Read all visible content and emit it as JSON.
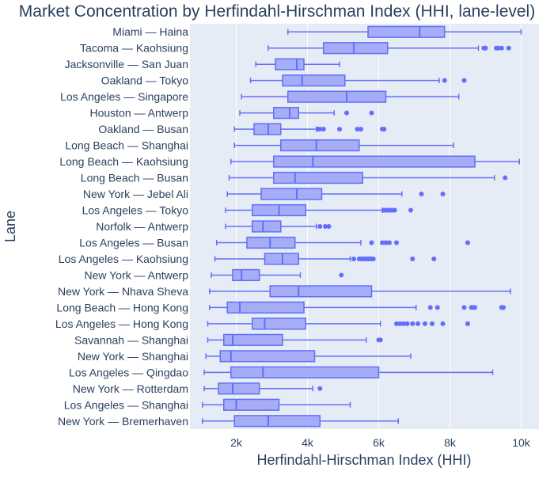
{
  "chart_data": {
    "type": "box",
    "orientation": "horizontal",
    "title": "Market Concentration by Herfindahl-Hirschman Index (HHI, lane-level)",
    "xlabel": "Herfindahl-Hirschman Index (HHI)",
    "ylabel": "Lane",
    "xlim": [
      700,
      10500
    ],
    "xticks": [
      2000,
      4000,
      6000,
      8000,
      10000
    ],
    "xtick_labels": [
      "2k",
      "4k",
      "6k",
      "8k",
      "10k"
    ],
    "grid": true,
    "legend": "none",
    "colors": {
      "box_fill": "#a5adf7",
      "box_line": "#636efa",
      "plot_bg": "#e5ecf6",
      "grid": "#ffffff",
      "text": "#2a3f5f"
    },
    "lanes": [
      {
        "name": "Miami — Haina",
        "whisker_low": 3450,
        "q1": 5700,
        "median": 7150,
        "q3": 7850,
        "whisker_high": 10000,
        "outliers": []
      },
      {
        "name": "Tacoma — Kaohsiung",
        "whisker_low": 2900,
        "q1": 4450,
        "median": 5300,
        "q3": 6250,
        "whisker_high": 8800,
        "outliers": [
          8950,
          9000,
          9300,
          9350,
          9450,
          9650
        ]
      },
      {
        "name": "Jacksonville — San Juan",
        "whisker_low": 2550,
        "q1": 3100,
        "median": 3700,
        "q3": 3900,
        "whisker_high": 4900,
        "outliers": []
      },
      {
        "name": "Oakland — Tokyo",
        "whisker_low": 2400,
        "q1": 3300,
        "median": 3850,
        "q3": 5050,
        "whisker_high": 7700,
        "outliers": [
          7850,
          8400
        ]
      },
      {
        "name": "Los Angeles — Singapore",
        "whisker_low": 2150,
        "q1": 3450,
        "median": 5100,
        "q3": 6200,
        "whisker_high": 8250,
        "outliers": []
      },
      {
        "name": "Houston — Antwerp",
        "whisker_low": 2100,
        "q1": 3050,
        "median": 3500,
        "q3": 3750,
        "whisker_high": 4750,
        "outliers": [
          5100,
          5800
        ]
      },
      {
        "name": "Oakland — Busan",
        "whisker_low": 1950,
        "q1": 2500,
        "median": 2900,
        "q3": 3250,
        "whisker_high": 4250,
        "outliers": [
          4300,
          4350,
          4450,
          4900,
          5400,
          5500,
          6100,
          6150
        ]
      },
      {
        "name": "Long Beach — Shanghai",
        "whisker_low": 1950,
        "q1": 3250,
        "median": 4250,
        "q3": 5450,
        "whisker_high": 8100,
        "outliers": []
      },
      {
        "name": "Long Beach — Kaohsiung",
        "whisker_low": 1850,
        "q1": 3050,
        "median": 4150,
        "q3": 8700,
        "whisker_high": 9950,
        "outliers": []
      },
      {
        "name": "Long Beach — Busan",
        "whisker_low": 1800,
        "q1": 3050,
        "median": 3650,
        "q3": 5550,
        "whisker_high": 9250,
        "outliers": [
          9550
        ]
      },
      {
        "name": "New York — Jebel Ali",
        "whisker_low": 1750,
        "q1": 2700,
        "median": 3700,
        "q3": 4400,
        "whisker_high": 6650,
        "outliers": [
          7200,
          7800
        ]
      },
      {
        "name": "Los Angeles — Tokyo",
        "whisker_low": 1700,
        "q1": 2450,
        "median": 3200,
        "q3": 3950,
        "whisker_high": 6100,
        "outliers": [
          6150,
          6200,
          6250,
          6300,
          6350,
          6400,
          6450,
          6900
        ]
      },
      {
        "name": "Norfolk — Antwerp",
        "whisker_low": 1700,
        "q1": 2450,
        "median": 2750,
        "q3": 3250,
        "whisker_high": 4250,
        "outliers": [
          4350,
          4500,
          4600
        ]
      },
      {
        "name": "Los Angeles — Busan",
        "whisker_low": 1450,
        "q1": 2300,
        "median": 2950,
        "q3": 3650,
        "whisker_high": 5500,
        "outliers": [
          5800,
          6100,
          6200,
          6300,
          6500,
          8500
        ]
      },
      {
        "name": "Los Angeles — Kaohsiung",
        "whisker_low": 1400,
        "q1": 2800,
        "median": 3300,
        "q3": 3750,
        "whisker_high": 5200,
        "outliers": [
          5300,
          5450,
          5500,
          5550,
          5600,
          5650,
          5700,
          5750,
          5800,
          5850,
          6950,
          7550
        ]
      },
      {
        "name": "New York — Antwerp",
        "whisker_low": 1300,
        "q1": 1900,
        "median": 2150,
        "q3": 2650,
        "whisker_high": 3800,
        "outliers": [
          4950
        ]
      },
      {
        "name": "New York — Nhava Sheva",
        "whisker_low": 1250,
        "q1": 2950,
        "median": 3750,
        "q3": 5800,
        "whisker_high": 9700,
        "outliers": []
      },
      {
        "name": "Long Beach — Hong Kong",
        "whisker_low": 1250,
        "q1": 1750,
        "median": 2100,
        "q3": 3900,
        "whisker_high": 7050,
        "outliers": [
          7450,
          7650,
          8400,
          8600,
          8650,
          8700,
          9450,
          9500
        ]
      },
      {
        "name": "Los Angeles — Hong Kong",
        "whisker_low": 1200,
        "q1": 2450,
        "median": 2800,
        "q3": 3950,
        "whisker_high": 6050,
        "outliers": [
          6500,
          6600,
          6700,
          6800,
          6950,
          7100,
          7300,
          7500,
          7800,
          8500
        ]
      },
      {
        "name": "Savannah — Shanghai",
        "whisker_low": 1200,
        "q1": 1650,
        "median": 1900,
        "q3": 3300,
        "whisker_high": 5650,
        "outliers": [
          6000,
          6050
        ]
      },
      {
        "name": "New York — Shanghai",
        "whisker_low": 1150,
        "q1": 1550,
        "median": 1850,
        "q3": 4200,
        "whisker_high": 6900,
        "outliers": []
      },
      {
        "name": "Los Angeles — Qingdao",
        "whisker_low": 1100,
        "q1": 1850,
        "median": 2750,
        "q3": 6000,
        "whisker_high": 9200,
        "outliers": []
      },
      {
        "name": "New York — Rotterdam",
        "whisker_low": 1100,
        "q1": 1500,
        "median": 1900,
        "q3": 2650,
        "whisker_high": 4150,
        "outliers": [
          4350
        ]
      },
      {
        "name": "Los Angeles — Shanghai",
        "whisker_low": 1050,
        "q1": 1650,
        "median": 2000,
        "q3": 3200,
        "whisker_high": 5200,
        "outliers": []
      },
      {
        "name": "New York — Bremerhaven",
        "whisker_low": 1050,
        "q1": 1950,
        "median": 2900,
        "q3": 4350,
        "whisker_high": 6550,
        "outliers": []
      }
    ]
  }
}
